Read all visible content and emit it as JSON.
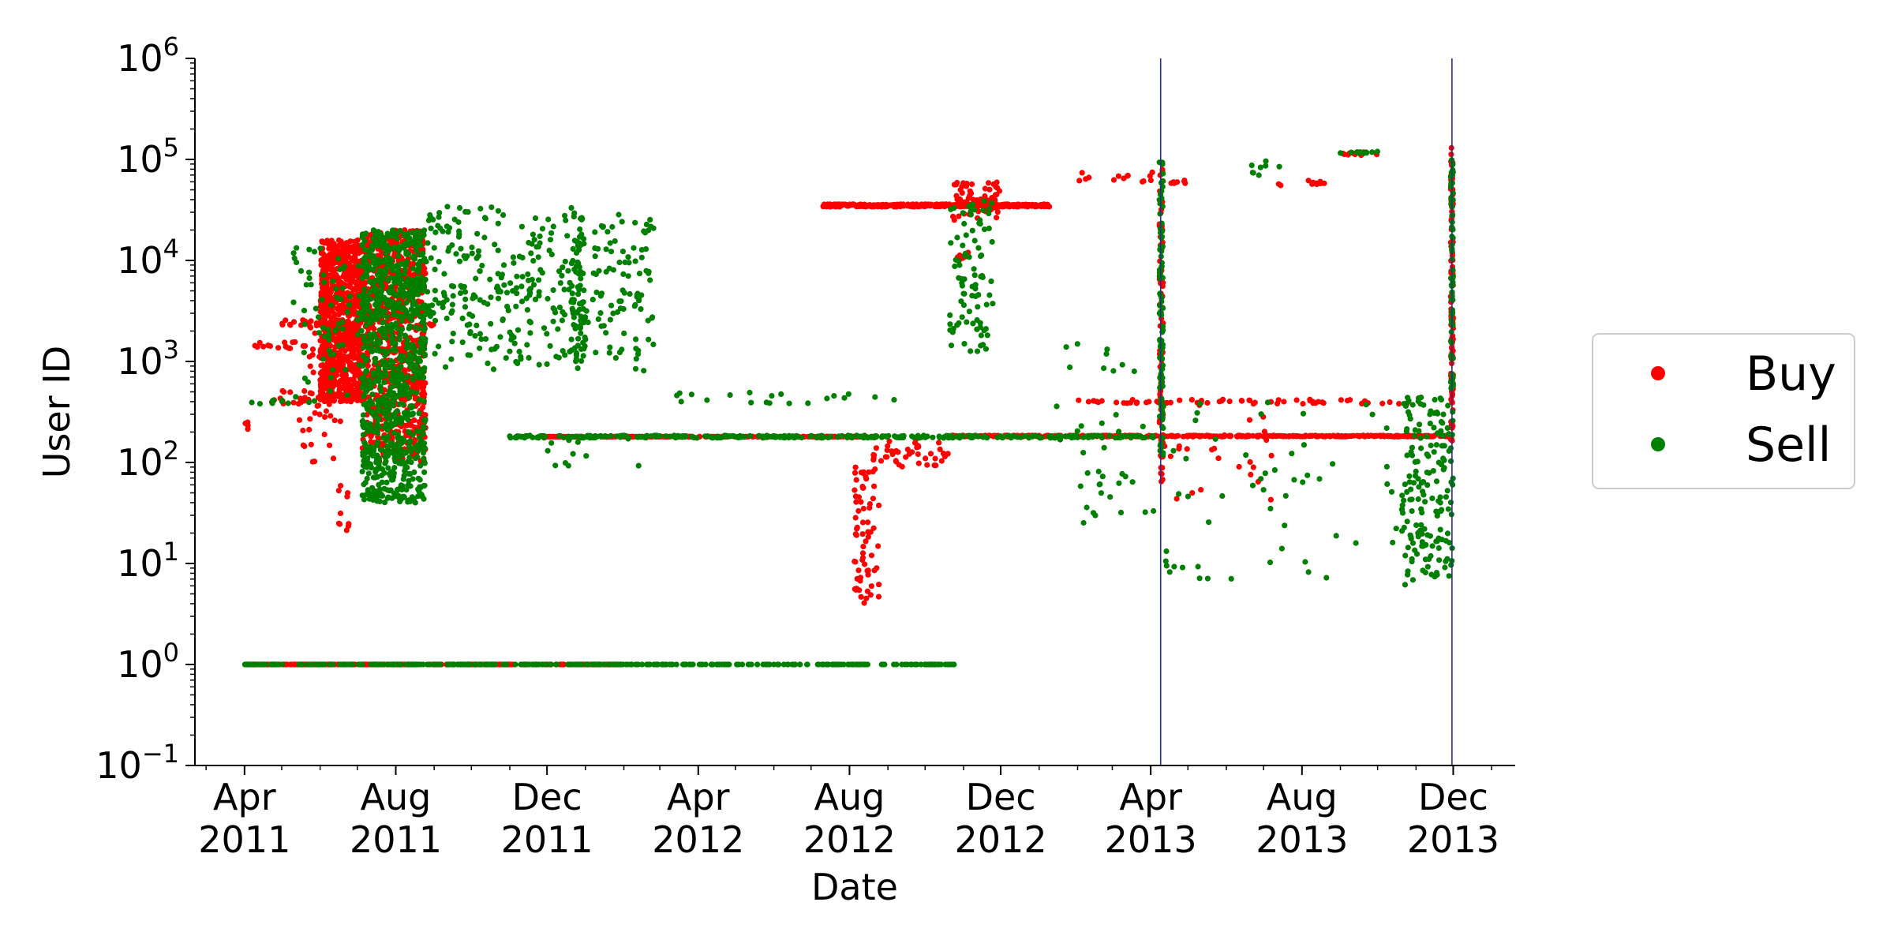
{
  "chart_data": {
    "type": "scatter",
    "title": "",
    "xlabel": "Date",
    "ylabel": "User ID",
    "yscale": "log",
    "ylim": [
      0.1,
      1000000
    ],
    "xlim": [
      "2011-02-20",
      "2014-01-20"
    ],
    "y_ticks": [
      {
        "value": 0.1,
        "base": "10",
        "exp": "−1"
      },
      {
        "value": 1,
        "base": "10",
        "exp": "0"
      },
      {
        "value": 10,
        "base": "10",
        "exp": "1"
      },
      {
        "value": 100,
        "base": "10",
        "exp": "2"
      },
      {
        "value": 1000,
        "base": "10",
        "exp": "3"
      },
      {
        "value": 10000,
        "base": "10",
        "exp": "4"
      },
      {
        "value": 100000,
        "base": "10",
        "exp": "5"
      },
      {
        "value": 1000000,
        "base": "10",
        "exp": "6"
      }
    ],
    "x_ticks": [
      {
        "date": "2011-04-01",
        "month": "Apr",
        "year": "2011"
      },
      {
        "date": "2011-08-01",
        "month": "Aug",
        "year": "2011"
      },
      {
        "date": "2011-12-01",
        "month": "Dec",
        "year": "2011"
      },
      {
        "date": "2012-04-01",
        "month": "Apr",
        "year": "2012"
      },
      {
        "date": "2012-08-01",
        "month": "Aug",
        "year": "2012"
      },
      {
        "date": "2012-12-01",
        "month": "Dec",
        "year": "2012"
      },
      {
        "date": "2013-04-01",
        "month": "Apr",
        "year": "2013"
      },
      {
        "date": "2013-08-01",
        "month": "Aug",
        "year": "2013"
      },
      {
        "date": "2013-12-01",
        "month": "Dec",
        "year": "2013"
      }
    ],
    "vertical_lines": [
      "2013-04-09",
      "2013-11-30"
    ],
    "grid": false,
    "legend_position": "right",
    "series": [
      {
        "name": "Buy",
        "color": "#ff0000",
        "clusters": [
          {
            "x": [
              "2011-04-01",
              "2011-04-05"
            ],
            "y": [
              200,
              250
            ],
            "n": 4
          },
          {
            "x": [
              "2011-04-05",
              "2011-05-15"
            ],
            "y": [
              1300,
              1600
            ],
            "n": 14
          },
          {
            "x": [
              "2011-04-10",
              "2011-06-01"
            ],
            "y": [
              380,
              520
            ],
            "n": 16
          },
          {
            "x": [
              "2011-05-01",
              "2011-06-05"
            ],
            "y": [
              2000,
              2600
            ],
            "n": 18
          },
          {
            "x": [
              "2011-05-15",
              "2011-06-20"
            ],
            "y": [
              100,
              2000
            ],
            "n": 50
          },
          {
            "x": [
              "2011-06-01",
              "2011-07-05"
            ],
            "y": [
              400,
              16000
            ],
            "n": 900
          },
          {
            "x": [
              "2011-06-15",
              "2011-06-25"
            ],
            "y": [
              20,
              120
            ],
            "n": 10
          },
          {
            "x": [
              "2011-07-05",
              "2011-08-25"
            ],
            "y": [
              100,
              20000
            ],
            "n": 800
          },
          {
            "x": [
              "2011-08-25",
              "2011-09-01"
            ],
            "y": [
              2000,
              2500
            ],
            "n": 4
          },
          {
            "x": [
              "2011-04-01",
              "2012-02-01"
            ],
            "y": [
              1,
              1
            ],
            "n": 260
          },
          {
            "x": [
              "2011-12-01",
              "2012-08-20"
            ],
            "y": [
              180,
              180
            ],
            "n": 260
          },
          {
            "x": [
              "2012-07-10",
              "2013-01-10"
            ],
            "y": [
              34000,
              36000
            ],
            "n": 400
          },
          {
            "x": [
              "2012-08-05",
              "2012-08-25"
            ],
            "y": [
              4,
              90
            ],
            "n": 70
          },
          {
            "x": [
              "2012-08-20",
              "2012-10-20"
            ],
            "y": [
              90,
              170
            ],
            "n": 45
          },
          {
            "x": [
              "2012-10-20",
              "2012-12-01"
            ],
            "y": [
              25000,
              60000
            ],
            "n": 60
          },
          {
            "x": [
              "2012-10-25",
              "2012-11-05"
            ],
            "y": [
              10000,
              12000
            ],
            "n": 8
          },
          {
            "x": [
              "2012-10-20",
              "2013-11-30"
            ],
            "y": [
              180,
              185
            ],
            "n": 420
          },
          {
            "x": [
              "2013-02-01",
              "2013-04-05"
            ],
            "y": [
              60000,
              75000
            ],
            "n": 14
          },
          {
            "x": [
              "2013-02-01",
              "2013-11-01"
            ],
            "y": [
              380,
              420
            ],
            "n": 60
          },
          {
            "x": [
              "2013-04-08",
              "2013-04-11"
            ],
            "y": [
              60,
              100000
            ],
            "n": 90
          },
          {
            "x": [
              "2013-04-10",
              "2013-04-30"
            ],
            "y": [
              58000,
              62000
            ],
            "n": 8
          },
          {
            "x": [
              "2013-04-10",
              "2013-07-10"
            ],
            "y": [
              40,
              400
            ],
            "n": 25
          },
          {
            "x": [
              "2013-07-01",
              "2013-08-20"
            ],
            "y": [
              55000,
              62000
            ],
            "n": 10
          },
          {
            "x": [
              "2013-09-01",
              "2013-10-01"
            ],
            "y": [
              110000,
              120000
            ],
            "n": 10
          },
          {
            "x": [
              "2013-11-29",
              "2013-12-01"
            ],
            "y": [
              150,
              130000
            ],
            "n": 120
          }
        ]
      },
      {
        "name": "Sell",
        "color": "#008000",
        "clusters": [
          {
            "x": [
              "2011-04-01",
              "2011-05-30"
            ],
            "y": [
              380,
              420
            ],
            "n": 10
          },
          {
            "x": [
              "2011-05-10",
              "2011-07-05"
            ],
            "y": [
              400,
              15000
            ],
            "n": 70
          },
          {
            "x": [
              "2011-07-05",
              "2011-08-25"
            ],
            "y": [
              40,
              20000
            ],
            "n": 900
          },
          {
            "x": [
              "2011-08-25",
              "2012-02-25"
            ],
            "y": [
              800,
              36000
            ],
            "n": 320
          },
          {
            "x": [
              "2011-08-15",
              "2012-02-01"
            ],
            "y": [
              3000,
              6000
            ],
            "n": 40
          },
          {
            "x": [
              "2011-12-20",
              "2012-01-01"
            ],
            "y": [
              1000,
              30000
            ],
            "n": 70
          },
          {
            "x": [
              "2011-12-01",
              "2012-02-20"
            ],
            "y": [
              90,
              180
            ],
            "n": 12
          },
          {
            "x": [
              "2011-04-01",
              "2012-10-25"
            ],
            "y": [
              1,
              1
            ],
            "n": 380
          },
          {
            "x": [
              "2011-11-01",
              "2013-04-05"
            ],
            "y": [
              175,
              185
            ],
            "n": 330
          },
          {
            "x": [
              "2012-02-25",
              "2012-09-10"
            ],
            "y": [
              380,
              500
            ],
            "n": 20
          },
          {
            "x": [
              "2012-10-20",
              "2012-11-25"
            ],
            "y": [
              1200,
              40000
            ],
            "n": 90
          },
          {
            "x": [
              "2013-01-15",
              "2013-04-05"
            ],
            "y": [
              25,
              1500
            ],
            "n": 40
          },
          {
            "x": [
              "2013-04-08",
              "2013-04-11"
            ],
            "y": [
              100,
              100000
            ],
            "n": 100
          },
          {
            "x": [
              "2013-04-10",
              "2013-11-25"
            ],
            "y": [
              7,
              400
            ],
            "n": 70
          },
          {
            "x": [
              "2013-06-20",
              "2013-07-20"
            ],
            "y": [
              60000,
              100000
            ],
            "n": 8
          },
          {
            "x": [
              "2013-09-01",
              "2013-10-01"
            ],
            "y": [
              115000,
              120000
            ],
            "n": 10
          },
          {
            "x": [
              "2013-10-20",
              "2013-12-01"
            ],
            "y": [
              6,
              450
            ],
            "n": 160
          },
          {
            "x": [
              "2013-11-29",
              "2013-12-01"
            ],
            "y": [
              500,
              120000
            ],
            "n": 70
          }
        ]
      }
    ]
  }
}
